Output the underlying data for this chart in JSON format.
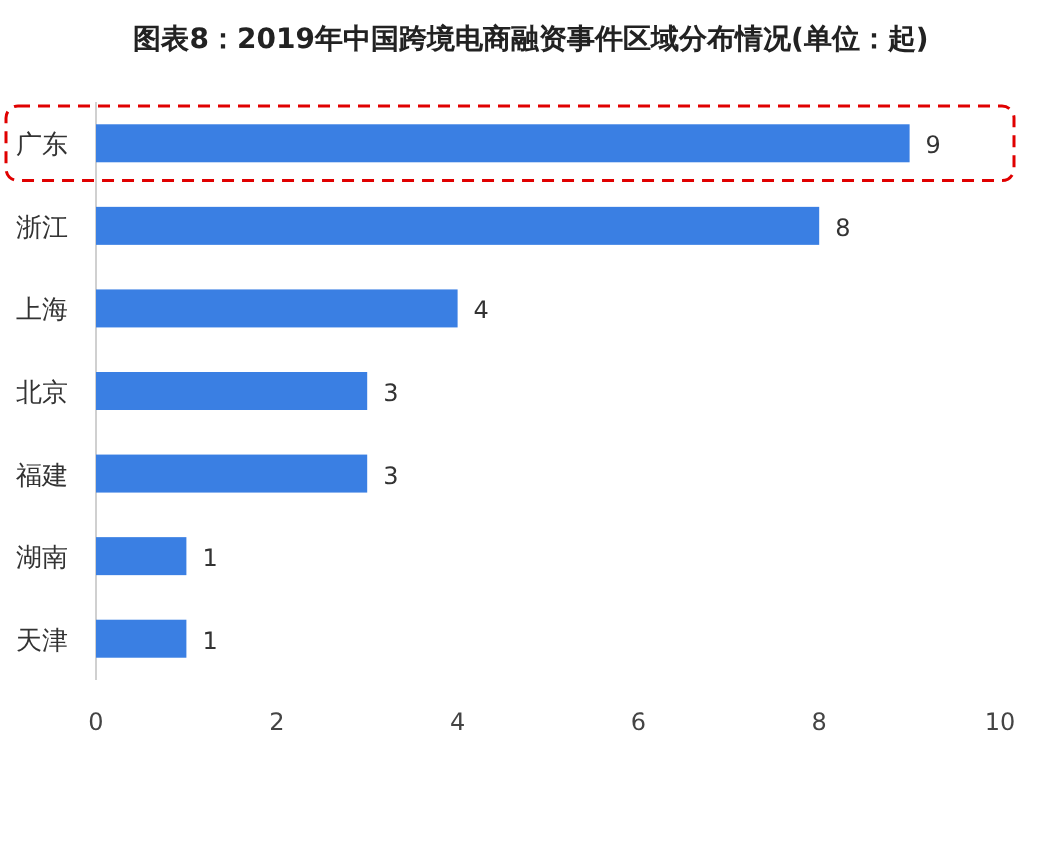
{
  "chart_data": {
    "type": "bar",
    "orientation": "horizontal",
    "title": "图表8：2019年中国跨境电商融资事件区域分布情况(单位：起)",
    "categories": [
      "广东",
      "浙江",
      "上海",
      "北京",
      "福建",
      "湖南",
      "天津"
    ],
    "values": [
      9,
      8,
      4,
      3,
      3,
      1,
      1
    ],
    "color": "#3a7fe3",
    "xlim": [
      0,
      10
    ],
    "xticks": [
      0,
      2,
      4,
      6,
      8,
      10
    ],
    "data_labels": true,
    "grid": false
  }
}
